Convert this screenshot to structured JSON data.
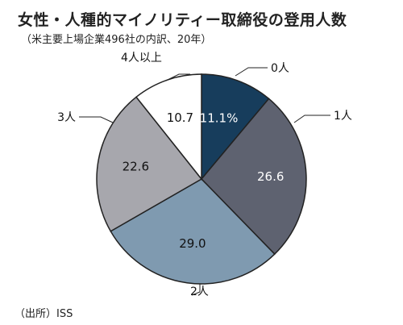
{
  "title": "女性・人種的マイノリティー取締役の登用人数",
  "subtitle": "（米主要上場企業496社の内訳、20年）",
  "source": "（出所）ISS",
  "colors": {
    "0人": "#173d5c",
    "1人": "#5e6270",
    "2人": "#7f9ab0",
    "3人": "#a7a7ad",
    "4人以上": "#ffffff",
    "outline": "#222222"
  },
  "chart_data": {
    "type": "pie",
    "unit": "%",
    "start": "12 o'clock",
    "direction": "clockwise",
    "slices": [
      {
        "category": "0人",
        "value": 11.1,
        "label": "11.1%"
      },
      {
        "category": "1人",
        "value": 26.6,
        "label": "26.6"
      },
      {
        "category": "2人",
        "value": 29.0,
        "label": "29.0"
      },
      {
        "category": "3人",
        "value": 22.6,
        "label": "22.6"
      },
      {
        "category": "4人以上",
        "value": 10.7,
        "label": "10.7"
      }
    ]
  }
}
